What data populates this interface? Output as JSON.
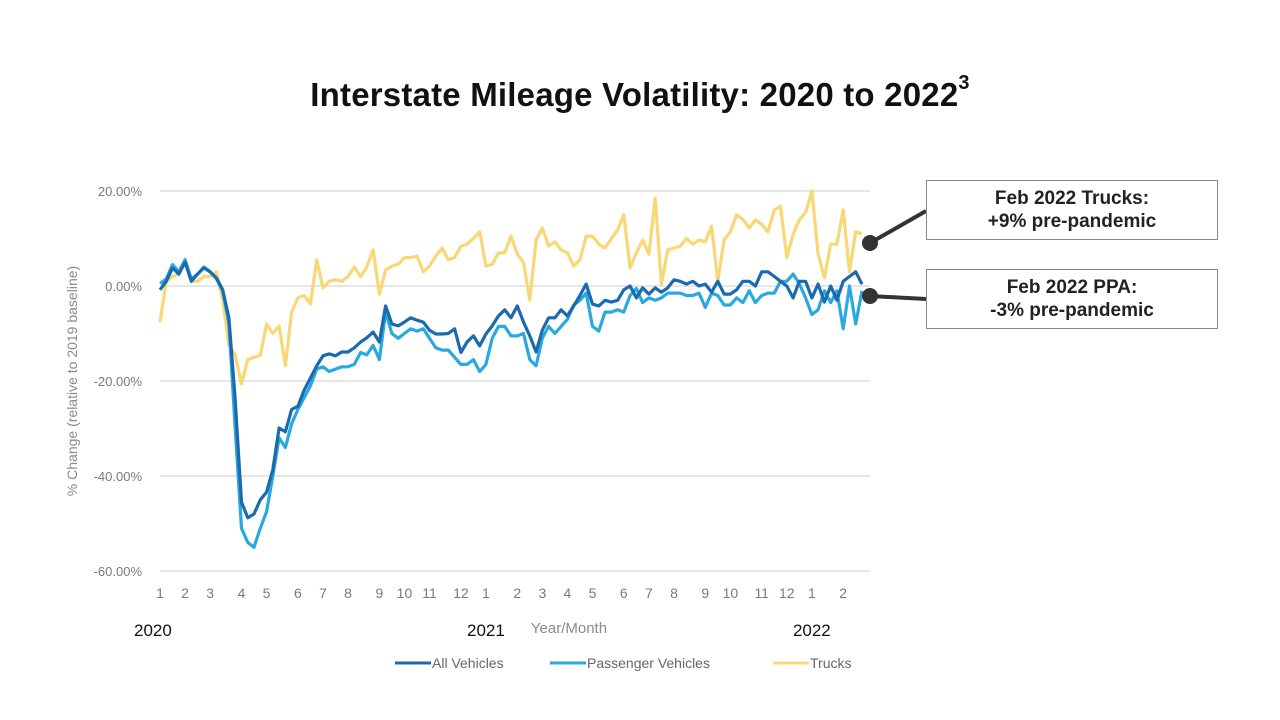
{
  "title": "Interstate Mileage Volatility: 2020 to 2022",
  "title_superscript": "3",
  "callouts": [
    {
      "line1": "Feb 2022 Trucks:",
      "line2": "+9% pre-pandemic",
      "series": "Trucks"
    },
    {
      "line1": "Feb 2022 PPA:",
      "line2": "-3% pre-pandemic",
      "series": "All Vehicles"
    }
  ],
  "chart_data": {
    "type": "line",
    "title": "Interstate Mileage Volatility: 2020 to 2022",
    "xlabel": "Year/Month",
    "ylabel": "% Change (relative to 2019 baseline)",
    "ylim": [
      -60,
      20
    ],
    "yticks": [
      20,
      0,
      -20,
      -40,
      -60
    ],
    "ytick_labels": [
      "20.00%",
      "0.00%",
      "-20.00%",
      "-40.00%",
      "-60.00%"
    ],
    "grid": true,
    "legend": "bottom",
    "colors": {
      "All Vehicles": "#1c6aae",
      "Passenger Vehicles": "#2aa8e0",
      "Trucks": "#f8d775"
    },
    "x_ticks": [
      {
        "label": "1",
        "month": "2020-01"
      },
      {
        "label": "2",
        "month": "2020-02"
      },
      {
        "label": "3",
        "month": "2020-03"
      },
      {
        "label": "4",
        "month": "2020-04"
      },
      {
        "label": "5",
        "month": "2020-05"
      },
      {
        "label": "6",
        "month": "2020-06"
      },
      {
        "label": "7",
        "month": "2020-07"
      },
      {
        "label": "8",
        "month": "2020-08"
      },
      {
        "label": "9",
        "month": "2020-09"
      },
      {
        "label": "10",
        "month": "2020-10"
      },
      {
        "label": "11",
        "month": "2020-11"
      },
      {
        "label": "12",
        "month": "2020-12"
      },
      {
        "label": "1",
        "month": "2021-01"
      },
      {
        "label": "2",
        "month": "2021-02"
      },
      {
        "label": "3",
        "month": "2021-03"
      },
      {
        "label": "4",
        "month": "2021-04"
      },
      {
        "label": "5",
        "month": "2021-05"
      },
      {
        "label": "6",
        "month": "2021-06"
      },
      {
        "label": "7",
        "month": "2021-07"
      },
      {
        "label": "8",
        "month": "2021-08"
      },
      {
        "label": "9",
        "month": "2021-09"
      },
      {
        "label": "10",
        "month": "2021-10"
      },
      {
        "label": "11",
        "month": "2021-11"
      },
      {
        "label": "12",
        "month": "2021-12"
      },
      {
        "label": "1",
        "month": "2022-01"
      },
      {
        "label": "2",
        "month": "2022-02"
      }
    ],
    "year_labels": [
      {
        "label": "2020",
        "month": "2020-01"
      },
      {
        "label": "2021",
        "month": "2021-01"
      },
      {
        "label": "2022",
        "month": "2022-01"
      }
    ],
    "x": [
      "2020-01-05",
      "2020-01-12",
      "2020-01-19",
      "2020-01-26",
      "2020-02-02",
      "2020-02-09",
      "2020-02-16",
      "2020-02-23",
      "2020-03-01",
      "2020-03-08",
      "2020-03-15",
      "2020-03-22",
      "2020-03-29",
      "2020-04-05",
      "2020-04-12",
      "2020-04-19",
      "2020-04-26",
      "2020-05-03",
      "2020-05-10",
      "2020-05-17",
      "2020-05-24",
      "2020-05-31",
      "2020-06-07",
      "2020-06-14",
      "2020-06-21",
      "2020-06-28",
      "2020-07-05",
      "2020-07-12",
      "2020-07-19",
      "2020-07-26",
      "2020-08-02",
      "2020-08-09",
      "2020-08-16",
      "2020-08-23",
      "2020-08-30",
      "2020-09-06",
      "2020-09-13",
      "2020-09-20",
      "2020-09-27",
      "2020-10-04",
      "2020-10-11",
      "2020-10-18",
      "2020-10-25",
      "2020-11-01",
      "2020-11-08",
      "2020-11-15",
      "2020-11-22",
      "2020-11-29",
      "2020-12-06",
      "2020-12-13",
      "2020-12-20",
      "2020-12-27",
      "2021-01-03",
      "2021-01-10",
      "2021-01-17",
      "2021-01-24",
      "2021-01-31",
      "2021-02-07",
      "2021-02-14",
      "2021-02-21",
      "2021-02-28",
      "2021-03-07",
      "2021-03-14",
      "2021-03-21",
      "2021-03-28",
      "2021-04-04",
      "2021-04-11",
      "2021-04-18",
      "2021-04-25",
      "2021-05-02",
      "2021-05-09",
      "2021-05-16",
      "2021-05-23",
      "2021-05-30",
      "2021-06-06",
      "2021-06-13",
      "2021-06-20",
      "2021-06-27",
      "2021-07-04",
      "2021-07-11",
      "2021-07-18",
      "2021-07-25",
      "2021-08-01",
      "2021-08-08",
      "2021-08-15",
      "2021-08-22",
      "2021-08-29",
      "2021-09-05",
      "2021-09-12",
      "2021-09-19",
      "2021-09-26",
      "2021-10-03",
      "2021-10-10",
      "2021-10-17",
      "2021-10-24",
      "2021-10-31",
      "2021-11-07",
      "2021-11-14",
      "2021-11-21",
      "2021-11-28",
      "2021-12-05",
      "2021-12-12",
      "2021-12-19",
      "2021-12-26",
      "2022-01-02",
      "2022-01-09",
      "2022-01-16",
      "2022-01-23",
      "2022-01-30",
      "2022-02-06",
      "2022-02-13",
      "2022-02-20",
      "2022-02-27"
    ],
    "series": [
      {
        "name": "Trucks",
        "values": [
          -7.6,
          1,
          2,
          2.5,
          5.7,
          1,
          1,
          2,
          2,
          3,
          -3,
          -12.4,
          -14.5,
          -20.6,
          -15.5,
          -15,
          -14.6,
          -8,
          -10,
          -8.4,
          -16.8,
          -5.5,
          -2.5,
          -2,
          -3.8,
          5.5,
          -0.4,
          1,
          1.3,
          1,
          2,
          4,
          2,
          4,
          7.6,
          -1.7,
          3.4,
          4.2,
          4.6,
          6,
          6,
          6.3,
          3,
          4.2,
          6.3,
          8,
          5.5,
          6,
          8.4,
          8.8,
          10,
          11.4,
          4.2,
          4.6,
          7,
          7,
          10.5,
          6.7,
          5,
          -3,
          9.7,
          12.2,
          8.4,
          9.3,
          7.6,
          7,
          4.2,
          5.5,
          10.5,
          10.5,
          8.8,
          8,
          10,
          11.8,
          15,
          3.8,
          7,
          9.7,
          6.7,
          18.5,
          0.4,
          7.6,
          8,
          8.4,
          10,
          8.8,
          9.7,
          9.3,
          12.6,
          1,
          9.7,
          11.4,
          15,
          14,
          12.2,
          13.9,
          13,
          11.4,
          16,
          16.8,
          6,
          10.9,
          13.9,
          15.5,
          20,
          6.7,
          1.7,
          8.8,
          8.8,
          16,
          3,
          11.4,
          11
        ]
      },
      {
        "name": "Passenger Vehicles",
        "values": [
          0.5,
          1.5,
          4.5,
          3,
          5.5,
          1.5,
          2.5,
          4,
          3,
          1.5,
          -1,
          -8,
          -30,
          -51,
          -54,
          -55,
          -51,
          -47.5,
          -40,
          -32,
          -34,
          -29,
          -26,
          -23.5,
          -21,
          -17.5,
          -17,
          -18,
          -17.5,
          -17,
          -17,
          -16.5,
          -14,
          -14.5,
          -12.5,
          -15.5,
          -5.5,
          -10,
          -11,
          -10,
          -9,
          -9.5,
          -9,
          -11,
          -13,
          -13.5,
          -13.5,
          -15,
          -16.5,
          -16.5,
          -15.5,
          -18,
          -16.5,
          -11,
          -8.5,
          -8.5,
          -10.5,
          -10.5,
          -10,
          -15.5,
          -16.8,
          -11,
          -8.5,
          -10,
          -8.5,
          -7,
          -4,
          -3,
          -1.5,
          -8.5,
          -9.5,
          -5.5,
          -5.5,
          -5,
          -5.5,
          -2,
          -0.5,
          -3.5,
          -2.5,
          -3,
          -2.5,
          -1.5,
          -1.5,
          -1.5,
          -2,
          -2,
          -1.5,
          -4.5,
          -1.5,
          -2,
          -4,
          -4,
          -2.5,
          -3.5,
          -1,
          -3.5,
          -2,
          -1.5,
          -1.5,
          1,
          1,
          2.5,
          0.5,
          -2.5,
          -6,
          -5,
          -1,
          -3.5,
          -1,
          -9,
          0,
          -8,
          -1
        ]
      },
      {
        "name": "All Vehicles",
        "values": [
          -0.8,
          1,
          3.8,
          2.5,
          5,
          1,
          2.5,
          3.8,
          3,
          1.7,
          -0.8,
          -6.7,
          -24,
          -45.5,
          -48.8,
          -48,
          -45,
          -43.4,
          -38.7,
          -29.9,
          -30.7,
          -26,
          -25.3,
          -21.9,
          -19.4,
          -16.8,
          -14.7,
          -14.3,
          -14.7,
          -13.9,
          -13.9,
          -13,
          -11.8,
          -10.9,
          -9.7,
          -11.8,
          -4.2,
          -8,
          -8.4,
          -7.6,
          -6.7,
          -7.2,
          -7.6,
          -9.3,
          -10.1,
          -10.1,
          -10,
          -9,
          -14,
          -11.8,
          -10.5,
          -12.6,
          -10.1,
          -8.4,
          -6.3,
          -5,
          -6.7,
          -4.2,
          -7.6,
          -10.5,
          -13.9,
          -9.3,
          -6.7,
          -6.7,
          -5,
          -6.3,
          -4.2,
          -2,
          0.4,
          -3.8,
          -4.2,
          -3,
          -3.4,
          -3,
          -0.8,
          0,
          -2.5,
          -0.4,
          -1.7,
          -0.4,
          -1.3,
          -0.4,
          1.3,
          1,
          0.4,
          1,
          0,
          0.4,
          -1.3,
          1,
          -1.7,
          -1.7,
          -0.8,
          1,
          1,
          0,
          3,
          3,
          2,
          1,
          0,
          -2.5,
          1,
          1,
          -2.5,
          0.4,
          -3.4,
          0,
          -3,
          1,
          2,
          3,
          0.4
        ]
      }
    ],
    "legend_order": [
      "All Vehicles",
      "Passenger Vehicles",
      "Trucks"
    ]
  }
}
